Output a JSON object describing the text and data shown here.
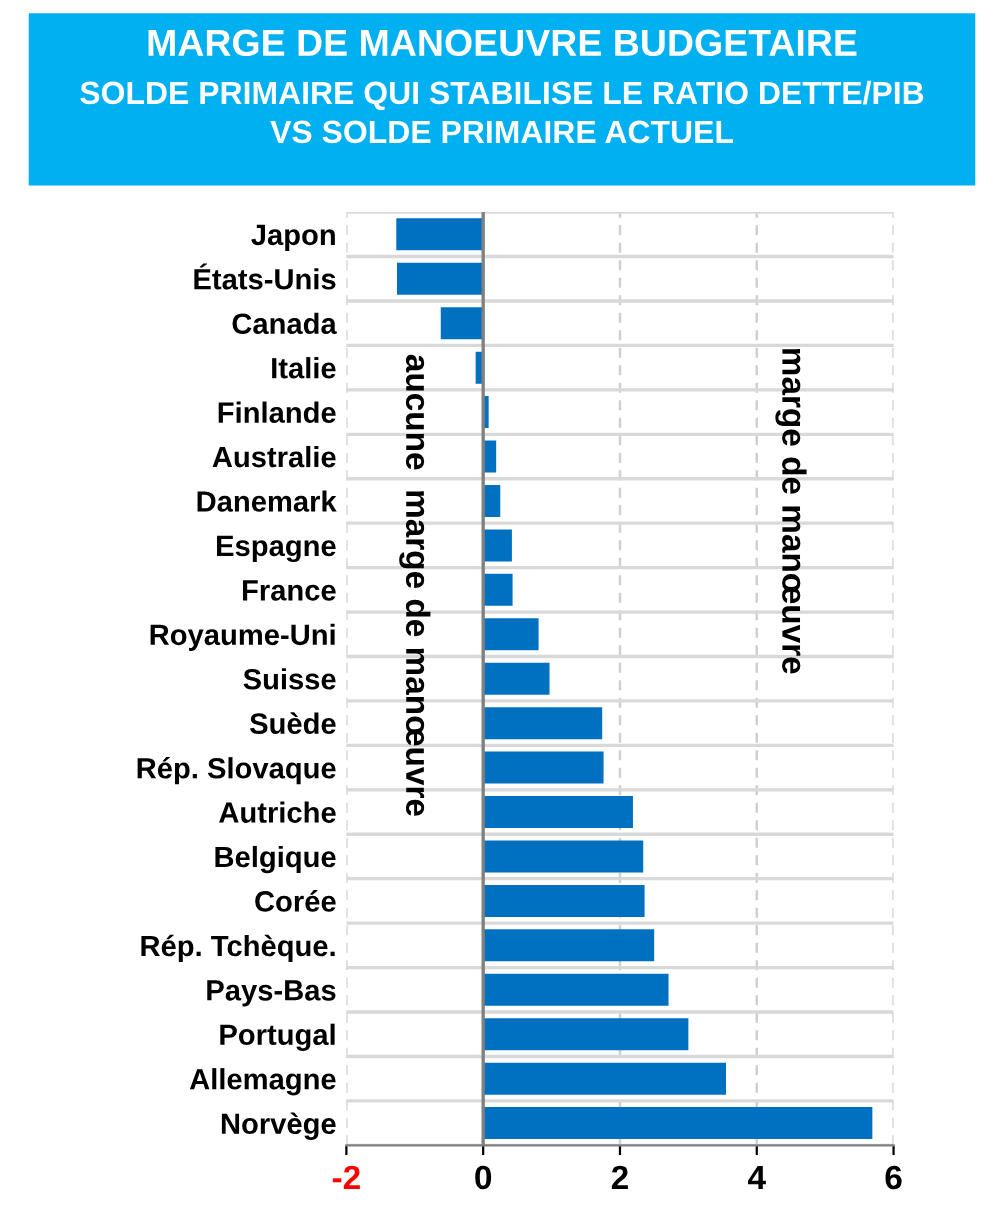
{
  "chart_data": {
    "type": "bar",
    "orientation": "horizontal",
    "title": "MARGE DE MANOEUVRE BUDGETAIRE",
    "subtitle": "SOLDE PRIMAIRE QUI STABILISE LE RATIO DETTE/PIB\nVS SOLDE PRIMAIRE ACTUEL",
    "categories": [
      "Japon",
      "États-Unis",
      "Canada",
      "Italie",
      "Finlande",
      "Australie",
      "Danemark",
      "Espagne",
      "France",
      "Royaume-Uni",
      "Suisse",
      "Suède",
      "Rép. Slovaque",
      "Autriche",
      "Belgique",
      "Corée",
      "Rép. Tchèque.",
      "Pays-Bas",
      "Portugal",
      "Allemagne",
      "Norvège"
    ],
    "values": [
      -1.27,
      -1.26,
      -0.62,
      -0.11,
      0.08,
      0.19,
      0.25,
      0.42,
      0.43,
      0.81,
      0.97,
      1.74,
      1.76,
      2.19,
      2.34,
      2.36,
      2.5,
      2.71,
      3.0,
      3.55,
      5.69
    ],
    "color": "#0070c0",
    "xlim": [
      -2,
      6
    ],
    "xticks": [
      -2,
      0,
      2,
      4,
      6
    ],
    "grid": true,
    "annotations": [
      "aucune  marge de manœuvre",
      "marge de manœuvre"
    ]
  }
}
